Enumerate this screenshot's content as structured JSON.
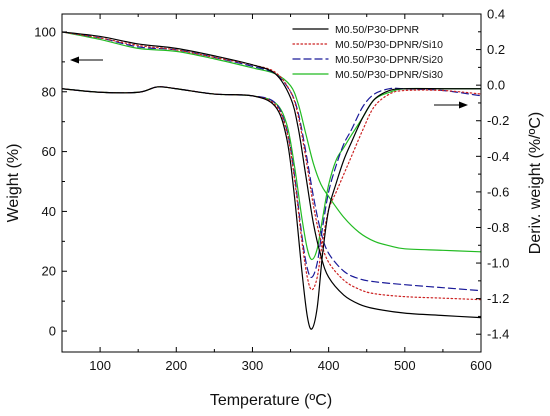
{
  "chart_data": {
    "type": "line",
    "xlabel": "Temperature (ºC)",
    "ylabel_left": "Weight (%)",
    "ylabel_right": "Deriv. weight (%/ºC)",
    "xlim": [
      50,
      600
    ],
    "ylim_left": [
      -7,
      106
    ],
    "ylim_right": [
      -1.5,
      0.4
    ],
    "x_ticks": [
      100,
      200,
      300,
      400,
      500,
      600
    ],
    "y_left_ticks": [
      0,
      20,
      40,
      60,
      80,
      100
    ],
    "y_right_ticks": [
      -1.4,
      -1.2,
      -1.0,
      -0.8,
      -0.6,
      -0.4,
      -0.2,
      0.0,
      0.2,
      0.4
    ],
    "y_right_tick_labels": [
      "-1.4",
      "-1.2",
      "-1.0",
      "-0.8",
      "-0.6",
      "-0.4",
      "-0.2",
      "0.0",
      "0.2",
      "0.4"
    ],
    "grid": false,
    "legend_position": "top-right",
    "annotations": [
      "left arrow near TG curves points to left axis",
      "right arrow near DTG curves points to right axis"
    ],
    "series": [
      {
        "name": "M0.50/P30-DPNR",
        "color": "#000000",
        "dash": "solid",
        "tg": {
          "x": [
            50,
            100,
            150,
            200,
            250,
            300,
            330,
            350,
            360,
            370,
            380,
            390,
            400,
            420,
            440,
            460,
            500,
            550,
            600
          ],
          "y": [
            100,
            98.5,
            96,
            94.5,
            92,
            89,
            86,
            78,
            68,
            52,
            36,
            25,
            18,
            12,
            9,
            7.5,
            6,
            5.2,
            4.5
          ]
        },
        "dtg": {
          "x": [
            50,
            100,
            150,
            175,
            200,
            250,
            300,
            330,
            345,
            355,
            365,
            372,
            378,
            385,
            392,
            400,
            410,
            420,
            430,
            445,
            460,
            480,
            500,
            550,
            600
          ],
          "y": [
            -0.02,
            -0.04,
            -0.04,
            -0.01,
            -0.02,
            -0.05,
            -0.06,
            -0.12,
            -0.3,
            -0.62,
            -1.05,
            -1.3,
            -1.37,
            -1.25,
            -0.95,
            -0.7,
            -0.55,
            -0.42,
            -0.32,
            -0.18,
            -0.08,
            -0.03,
            -0.02,
            -0.02,
            -0.02
          ]
        }
      },
      {
        "name": "M0.50/P30-DPNR/Si10",
        "color": "#cc2222",
        "dash": "dot",
        "tg": {
          "x": [
            50,
            100,
            150,
            200,
            250,
            300,
            330,
            350,
            360,
            370,
            380,
            390,
            400,
            420,
            440,
            460,
            500,
            550,
            600
          ],
          "y": [
            100,
            98,
            95.5,
            94,
            91.5,
            89,
            86.5,
            80,
            72,
            58,
            42,
            30,
            23,
            17,
            14,
            12.5,
            11.5,
            11,
            10.5
          ]
        },
        "dtg": {
          "x": [
            50,
            100,
            150,
            175,
            200,
            250,
            300,
            330,
            345,
            355,
            365,
            372,
            378,
            385,
            392,
            400,
            410,
            420,
            430,
            445,
            460,
            480,
            500,
            550,
            600
          ],
          "y": [
            -0.02,
            -0.04,
            -0.04,
            -0.01,
            -0.02,
            -0.05,
            -0.06,
            -0.11,
            -0.26,
            -0.52,
            -0.88,
            -1.08,
            -1.15,
            -1.08,
            -0.88,
            -0.7,
            -0.6,
            -0.5,
            -0.4,
            -0.25,
            -0.12,
            -0.05,
            -0.03,
            -0.03,
            -0.05
          ]
        }
      },
      {
        "name": "M0.50/P30-DPNR/Si20",
        "color": "#1a1a99",
        "dash": "dash",
        "tg": {
          "x": [
            50,
            100,
            150,
            200,
            250,
            300,
            330,
            350,
            360,
            370,
            380,
            390,
            400,
            420,
            440,
            460,
            500,
            550,
            600
          ],
          "y": [
            100,
            98,
            95,
            94,
            91.5,
            88.5,
            86,
            80,
            73,
            60,
            45,
            33,
            26,
            20,
            17.5,
            16.5,
            15.5,
            14.5,
            13.5
          ]
        },
        "dtg": {
          "x": [
            50,
            100,
            150,
            175,
            200,
            250,
            300,
            330,
            345,
            355,
            365,
            372,
            378,
            385,
            392,
            400,
            410,
            420,
            430,
            445,
            460,
            480,
            500,
            550,
            600
          ],
          "y": [
            -0.02,
            -0.04,
            -0.04,
            -0.01,
            -0.02,
            -0.05,
            -0.06,
            -0.1,
            -0.25,
            -0.5,
            -0.85,
            -1.03,
            -1.08,
            -1.0,
            -0.8,
            -0.6,
            -0.45,
            -0.33,
            -0.25,
            -0.12,
            -0.05,
            -0.02,
            -0.02,
            -0.03,
            -0.06
          ]
        }
      },
      {
        "name": "M0.50/P30-DPNR/Si30",
        "color": "#22bb22",
        "dash": "solid",
        "tg": {
          "x": [
            50,
            100,
            150,
            200,
            250,
            300,
            330,
            350,
            360,
            370,
            380,
            390,
            400,
            420,
            440,
            460,
            480,
            500,
            550,
            600
          ],
          "y": [
            100,
            97.5,
            94.5,
            93.5,
            91,
            88,
            86,
            82,
            76,
            66,
            56,
            49,
            45,
            38,
            33,
            30,
            28.5,
            27.5,
            27,
            26.5
          ]
        },
        "dtg": {
          "x": [
            50,
            100,
            150,
            175,
            200,
            250,
            300,
            330,
            345,
            355,
            365,
            372,
            378,
            385,
            392,
            400,
            410,
            420,
            430,
            445,
            460,
            480,
            500,
            550,
            600
          ],
          "y": [
            -0.02,
            -0.04,
            -0.04,
            -0.01,
            -0.02,
            -0.05,
            -0.06,
            -0.1,
            -0.22,
            -0.45,
            -0.75,
            -0.92,
            -0.98,
            -0.92,
            -0.75,
            -0.56,
            -0.42,
            -0.35,
            -0.28,
            -0.18,
            -0.08,
            -0.04,
            -0.02,
            -0.02,
            -0.02
          ]
        }
      }
    ]
  }
}
